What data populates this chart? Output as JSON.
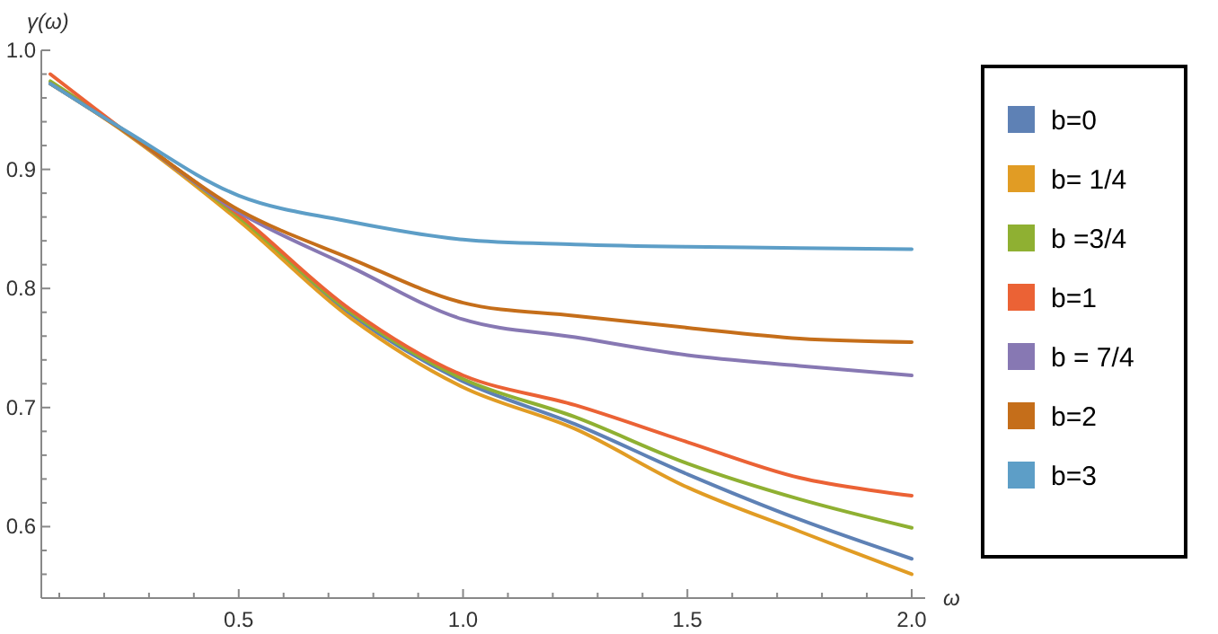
{
  "chart_data": {
    "type": "line",
    "xlabel": "ω",
    "ylabel": "γ(ω)",
    "xlim": [
      0.06,
      2.03
    ],
    "ylim": [
      0.54,
      1.0
    ],
    "xticks": [
      {
        "value": 0.1,
        "label": null
      },
      {
        "value": 0.2,
        "label": null
      },
      {
        "value": 0.3,
        "label": null
      },
      {
        "value": 0.4,
        "label": null
      },
      {
        "value": 0.5,
        "label": "0.5"
      },
      {
        "value": 0.6,
        "label": null
      },
      {
        "value": 0.7,
        "label": null
      },
      {
        "value": 0.8,
        "label": null
      },
      {
        "value": 0.9,
        "label": null
      },
      {
        "value": 1.0,
        "label": "1.0"
      },
      {
        "value": 1.1,
        "label": null
      },
      {
        "value": 1.2,
        "label": null
      },
      {
        "value": 1.3,
        "label": null
      },
      {
        "value": 1.4,
        "label": null
      },
      {
        "value": 1.5,
        "label": "1.5"
      },
      {
        "value": 1.6,
        "label": null
      },
      {
        "value": 1.7,
        "label": null
      },
      {
        "value": 1.8,
        "label": null
      },
      {
        "value": 1.9,
        "label": null
      },
      {
        "value": 2.0,
        "label": "2.0"
      }
    ],
    "yticks": [
      {
        "value": 0.56,
        "label": null
      },
      {
        "value": 0.58,
        "label": null
      },
      {
        "value": 0.6,
        "label": "0.6"
      },
      {
        "value": 0.62,
        "label": null
      },
      {
        "value": 0.64,
        "label": null
      },
      {
        "value": 0.66,
        "label": null
      },
      {
        "value": 0.68,
        "label": null
      },
      {
        "value": 0.7,
        "label": "0.7"
      },
      {
        "value": 0.72,
        "label": null
      },
      {
        "value": 0.74,
        "label": null
      },
      {
        "value": 0.76,
        "label": null
      },
      {
        "value": 0.78,
        "label": null
      },
      {
        "value": 0.8,
        "label": "0.8"
      },
      {
        "value": 0.82,
        "label": null
      },
      {
        "value": 0.84,
        "label": null
      },
      {
        "value": 0.86,
        "label": null
      },
      {
        "value": 0.88,
        "label": null
      },
      {
        "value": 0.9,
        "label": "0.9"
      },
      {
        "value": 0.92,
        "label": null
      },
      {
        "value": 0.94,
        "label": null
      },
      {
        "value": 0.96,
        "label": null
      },
      {
        "value": 0.98,
        "label": null
      },
      {
        "value": 1.0,
        "label": "1.0"
      }
    ],
    "x": [
      0.08,
      0.25,
      0.5,
      0.75,
      1.0,
      1.25,
      1.5,
      1.75,
      2.0
    ],
    "grid": false,
    "legend": "right",
    "marker": "none",
    "line_style": "solid",
    "series": [
      {
        "name": "b=0",
        "color": "#5e81b5",
        "values": [
          0.972,
          0.931,
          0.859,
          0.778,
          0.722,
          0.686,
          0.644,
          0.606,
          0.573
        ]
      },
      {
        "name": "b= 1/4",
        "color": "#e19c24",
        "values": [
          0.972,
          0.93,
          0.857,
          0.775,
          0.717,
          0.682,
          0.633,
          0.596,
          0.56
        ]
      },
      {
        "name": "b =3/4",
        "color": "#8fb032",
        "values": [
          0.974,
          0.931,
          0.86,
          0.78,
          0.724,
          0.692,
          0.653,
          0.623,
          0.599
        ]
      },
      {
        "name": "b=1",
        "color": "#eb6235",
        "values": [
          0.98,
          0.931,
          0.862,
          0.782,
          0.727,
          0.702,
          0.671,
          0.641,
          0.626
        ]
      },
      {
        "name": "b = 7/4",
        "color": "#8778b3",
        "values": [
          0.972,
          0.931,
          0.864,
          0.818,
          0.774,
          0.759,
          0.744,
          0.735,
          0.727
        ]
      },
      {
        "name": "b=2",
        "color": "#c56e1a",
        "values": [
          0.972,
          0.931,
          0.866,
          0.825,
          0.788,
          0.777,
          0.767,
          0.758,
          0.755
        ]
      },
      {
        "name": "b=3",
        "color": "#5d9ec7",
        "values": [
          0.972,
          0.932,
          0.878,
          0.856,
          0.841,
          0.837,
          0.835,
          0.834,
          0.833
        ]
      }
    ]
  }
}
